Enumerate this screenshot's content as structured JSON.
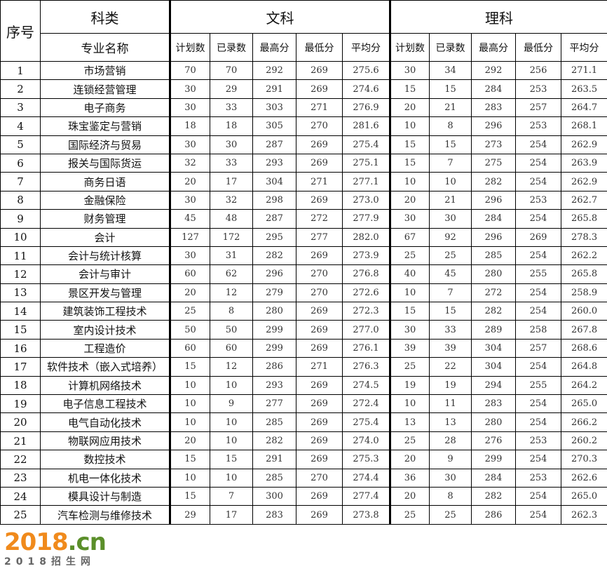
{
  "header": {
    "index": "序号",
    "category": "科类",
    "major": "专业名称",
    "arts": "文科",
    "science": "理科",
    "cols": [
      "计划数",
      "已录数",
      "最高分",
      "最低分",
      "平均分"
    ]
  },
  "rows": [
    {
      "no": "1",
      "name": "市场营销",
      "arts": [
        "70",
        "70",
        "292",
        "269",
        "275.6"
      ],
      "sci": [
        "30",
        "34",
        "292",
        "256",
        "271.1"
      ]
    },
    {
      "no": "2",
      "name": "连锁经营管理",
      "arts": [
        "30",
        "29",
        "291",
        "269",
        "274.6"
      ],
      "sci": [
        "15",
        "15",
        "284",
        "253",
        "263.5"
      ]
    },
    {
      "no": "3",
      "name": "电子商务",
      "arts": [
        "30",
        "33",
        "303",
        "271",
        "276.9"
      ],
      "sci": [
        "20",
        "21",
        "283",
        "257",
        "264.7"
      ]
    },
    {
      "no": "4",
      "name": "珠宝鉴定与营销",
      "arts": [
        "18",
        "18",
        "305",
        "270",
        "281.6"
      ],
      "sci": [
        "10",
        "8",
        "296",
        "253",
        "268.1"
      ]
    },
    {
      "no": "5",
      "name": "国际经济与贸易",
      "arts": [
        "30",
        "30",
        "287",
        "269",
        "275.4"
      ],
      "sci": [
        "15",
        "15",
        "273",
        "254",
        "262.9"
      ]
    },
    {
      "no": "6",
      "name": "报关与国际货运",
      "arts": [
        "32",
        "33",
        "293",
        "269",
        "275.1"
      ],
      "sci": [
        "15",
        "7",
        "275",
        "254",
        "263.9"
      ]
    },
    {
      "no": "7",
      "name": "商务日语",
      "arts": [
        "20",
        "17",
        "304",
        "271",
        "277.1"
      ],
      "sci": [
        "10",
        "10",
        "282",
        "254",
        "262.9"
      ]
    },
    {
      "no": "8",
      "name": "金融保险",
      "arts": [
        "30",
        "32",
        "298",
        "269",
        "273.0"
      ],
      "sci": [
        "20",
        "21",
        "296",
        "253",
        "262.7"
      ]
    },
    {
      "no": "9",
      "name": "财务管理",
      "arts": [
        "45",
        "48",
        "287",
        "272",
        "277.9"
      ],
      "sci": [
        "30",
        "30",
        "284",
        "254",
        "265.8"
      ]
    },
    {
      "no": "10",
      "name": "会计",
      "arts": [
        "127",
        "172",
        "295",
        "277",
        "282.0"
      ],
      "sci": [
        "67",
        "92",
        "296",
        "269",
        "278.3"
      ]
    },
    {
      "no": "11",
      "name": "会计与统计核算",
      "arts": [
        "30",
        "31",
        "282",
        "269",
        "273.9"
      ],
      "sci": [
        "25",
        "25",
        "285",
        "254",
        "262.2"
      ]
    },
    {
      "no": "12",
      "name": "会计与审计",
      "arts": [
        "60",
        "62",
        "296",
        "270",
        "276.8"
      ],
      "sci": [
        "40",
        "45",
        "280",
        "255",
        "265.8"
      ]
    },
    {
      "no": "13",
      "name": "景区开发与管理",
      "arts": [
        "20",
        "12",
        "279",
        "270",
        "272.6"
      ],
      "sci": [
        "10",
        "7",
        "272",
        "254",
        "258.9"
      ]
    },
    {
      "no": "14",
      "name": "建筑装饰工程技术",
      "arts": [
        "25",
        "8",
        "280",
        "269",
        "272.3"
      ],
      "sci": [
        "15",
        "15",
        "282",
        "254",
        "260.0"
      ]
    },
    {
      "no": "15",
      "name": "室内设计技术",
      "arts": [
        "50",
        "50",
        "299",
        "269",
        "277.0"
      ],
      "sci": [
        "30",
        "33",
        "289",
        "258",
        "267.8"
      ]
    },
    {
      "no": "16",
      "name": "工程造价",
      "arts": [
        "60",
        "60",
        "299",
        "269",
        "276.1"
      ],
      "sci": [
        "39",
        "39",
        "304",
        "257",
        "268.6"
      ]
    },
    {
      "no": "17",
      "name": "软件技术（嵌入式培养）",
      "arts": [
        "15",
        "12",
        "286",
        "271",
        "276.3"
      ],
      "sci": [
        "25",
        "22",
        "304",
        "254",
        "264.8"
      ]
    },
    {
      "no": "18",
      "name": "计算机网络技术",
      "arts": [
        "10",
        "10",
        "293",
        "269",
        "274.5"
      ],
      "sci": [
        "19",
        "19",
        "294",
        "255",
        "264.2"
      ]
    },
    {
      "no": "19",
      "name": "电子信息工程技术",
      "arts": [
        "10",
        "9",
        "277",
        "269",
        "272.4"
      ],
      "sci": [
        "10",
        "11",
        "283",
        "254",
        "265.0"
      ]
    },
    {
      "no": "20",
      "name": "电气自动化技术",
      "arts": [
        "10",
        "10",
        "285",
        "269",
        "275.4"
      ],
      "sci": [
        "13",
        "13",
        "280",
        "254",
        "266.2"
      ]
    },
    {
      "no": "21",
      "name": "物联网应用技术",
      "arts": [
        "20",
        "10",
        "282",
        "269",
        "274.0"
      ],
      "sci": [
        "25",
        "28",
        "276",
        "253",
        "260.2"
      ]
    },
    {
      "no": "22",
      "name": "数控技术",
      "arts": [
        "15",
        "15",
        "291",
        "269",
        "275.3"
      ],
      "sci": [
        "20",
        "9",
        "299",
        "254",
        "270.3"
      ]
    },
    {
      "no": "23",
      "name": "机电一体化技术",
      "arts": [
        "10",
        "10",
        "285",
        "270",
        "274.4"
      ],
      "sci": [
        "36",
        "30",
        "284",
        "253",
        "262.6"
      ]
    },
    {
      "no": "24",
      "name": "模具设计与制造",
      "arts": [
        "15",
        "7",
        "300",
        "269",
        "277.4"
      ],
      "sci": [
        "20",
        "8",
        "282",
        "254",
        "265.0"
      ]
    },
    {
      "no": "25",
      "name": "汽车检测与维修技术",
      "arts": [
        "29",
        "17",
        "283",
        "269",
        "273.8"
      ],
      "sci": [
        "25",
        "25",
        "286",
        "254",
        "262.3"
      ]
    }
  ],
  "watermark": {
    "logo_a": "2018",
    "logo_b": ".cn",
    "tagline": "2018招生网"
  }
}
